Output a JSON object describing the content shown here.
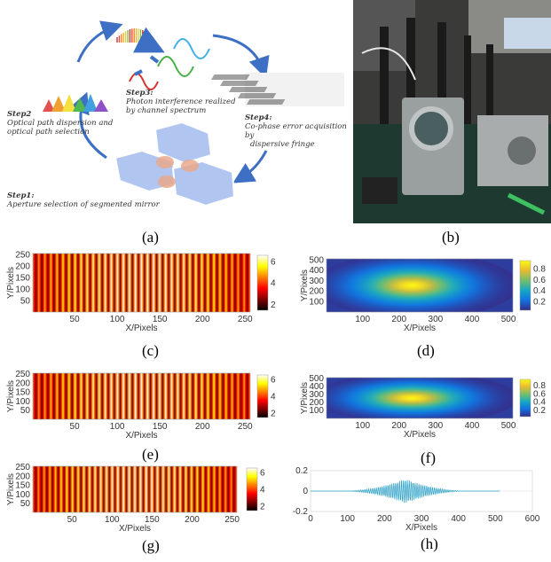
{
  "captions": {
    "a": "(a)",
    "b": "(b)",
    "c": "(c)",
    "d": "(d)",
    "e": "(e)",
    "f": "(f)",
    "g": "(g)",
    "h": "(h)"
  },
  "diagram": {
    "step1_title": "Step1:",
    "step1_text": "Aperture selection of segmented mirror",
    "step2_title": "Step2",
    "step2_text_1": "Optical path dispersion and",
    "step2_text_2": "optical path selection",
    "step3_title": "Step3:",
    "step3_text_1": "Photon interference realized",
    "step3_text_2": "by channel spectrum",
    "step4_title": "Step4:",
    "step4_text_1": "Co-phase error acquisition by",
    "step4_text_2": "dispersive fringe"
  },
  "colors": {
    "accent_blue": "#3d6fc4",
    "hex_fill": "#a9bff0",
    "spot": "#e8a080"
  },
  "chart_data": [
    {
      "id": "c",
      "type": "heatmap",
      "xlabel": "X/Pixels",
      "ylabel": "Y/Pixels",
      "xticks": [
        50,
        100,
        150,
        200,
        250
      ],
      "yticks": [
        50,
        100,
        150,
        200,
        250
      ],
      "colorbar_ticks": [
        2,
        4,
        6
      ],
      "colormap": "hot",
      "fringes": 36,
      "xlim": [
        1,
        256
      ],
      "ylim": [
        1,
        256
      ]
    },
    {
      "id": "d",
      "type": "heatmap",
      "xlabel": "X/Pixels",
      "ylabel": "Y/Pixels",
      "xticks": [
        100,
        200,
        300,
        400,
        500
      ],
      "yticks": [
        100,
        200,
        300,
        400,
        500
      ],
      "colorbar_ticks": [
        0.2,
        0.4,
        0.6,
        0.8
      ],
      "colormap": "parula",
      "xlim": [
        1,
        512
      ],
      "ylim": [
        1,
        512
      ]
    },
    {
      "id": "e",
      "type": "heatmap",
      "xlabel": "X/Pixels",
      "ylabel": "Y/Pixels",
      "xticks": [
        50,
        100,
        150,
        200,
        250
      ],
      "yticks": [
        50,
        100,
        150,
        200,
        250
      ],
      "colorbar_ticks": [
        2,
        4,
        6
      ],
      "colormap": "hot",
      "fringes": 36,
      "xlim": [
        1,
        256
      ],
      "ylim": [
        1,
        256
      ]
    },
    {
      "id": "f",
      "type": "heatmap",
      "xlabel": "X/Pixels",
      "ylabel": "Y/Pixels",
      "xticks": [
        100,
        200,
        300,
        400,
        500
      ],
      "yticks": [
        100,
        200,
        300,
        400,
        500
      ],
      "colorbar_ticks": [
        0.2,
        0.4,
        0.6,
        0.8
      ],
      "colormap": "parula",
      "xlim": [
        1,
        512
      ],
      "ylim": [
        1,
        512
      ]
    },
    {
      "id": "g",
      "type": "heatmap",
      "xlabel": "X/Pixels",
      "ylabel": "Y/Pixels",
      "xticks": [
        50,
        100,
        150,
        200,
        250
      ],
      "yticks": [
        50,
        100,
        150,
        200,
        250
      ],
      "colorbar_ticks": [
        2,
        4,
        6
      ],
      "colormap": "hot",
      "fringes": 36,
      "xlim": [
        1,
        256
      ],
      "ylim": [
        1,
        256
      ]
    },
    {
      "id": "h",
      "type": "line",
      "xlabel": "X/Pixels",
      "ylabel": "",
      "xticks": [
        0,
        100,
        200,
        300,
        400,
        500,
        600
      ],
      "yticks": [
        -0.2,
        0,
        0.2
      ],
      "xlim": [
        0,
        600
      ],
      "ylim": [
        -0.2,
        0.2
      ],
      "envelope_center": 256,
      "envelope_halfwidth": 170,
      "peak": 0.12
    }
  ]
}
